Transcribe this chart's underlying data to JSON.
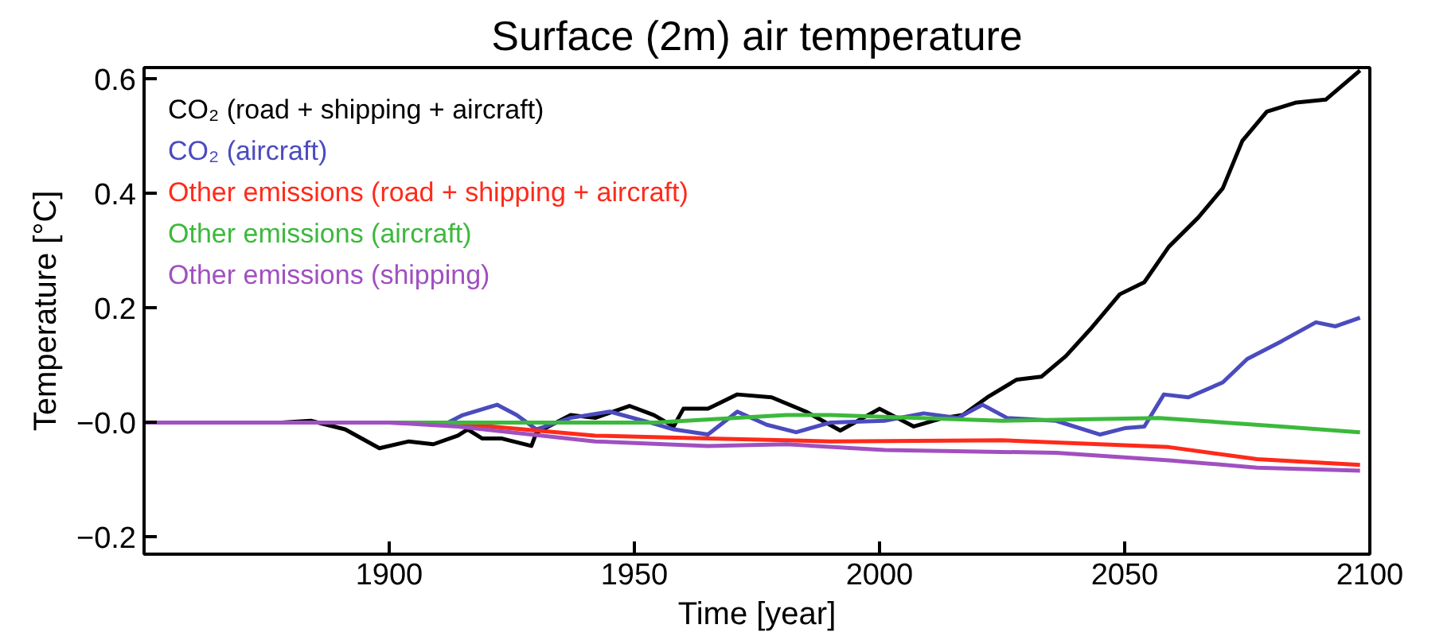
{
  "chart_data": {
    "type": "line",
    "title": "Surface (2m) air temperature",
    "xlabel": "Time [year]",
    "ylabel": "Temperature [°C]",
    "xlim": [
      1850,
      2100
    ],
    "xticks": [
      1900,
      1950,
      2000,
      2050,
      2100
    ],
    "ylim": [
      -0.23,
      0.62
    ],
    "yticks": [
      {
        "value": -0.2,
        "label": "−0.2"
      },
      {
        "value": 0,
        "label": "−0.0"
      },
      0.2,
      0.4,
      0.6
    ],
    "legend": "top left",
    "grid": false,
    "marker": "none",
    "line_style": "solid",
    "series": [
      {
        "name": "CO₂ (road + shipping + aircraft)",
        "color": "#000000",
        "x": [
          1850,
          1878,
          1884,
          1891,
          1898,
          1904,
          1909,
          1914,
          1916,
          1919,
          1923,
          1929,
          1930,
          1937,
          1942,
          1949,
          1954,
          1958,
          1960,
          1965,
          1971,
          1978,
          1985,
          1992,
          2000,
          2007,
          2013,
          2017,
          2022,
          2028,
          2033,
          2038,
          2043,
          2049,
          2054,
          2059,
          2065,
          2070,
          2074,
          2079,
          2085,
          2091,
          2098
        ],
        "values": [
          0,
          0,
          0.003,
          -0.012,
          -0.045,
          -0.033,
          -0.038,
          -0.023,
          -0.012,
          -0.028,
          -0.028,
          -0.041,
          -0.018,
          0.013,
          0.008,
          0.029,
          0.013,
          -0.007,
          0.024,
          0.024,
          0.049,
          0.044,
          0.019,
          -0.014,
          0.024,
          -0.007,
          0.008,
          0.013,
          0.044,
          0.075,
          0.08,
          0.116,
          0.163,
          0.224,
          0.245,
          0.307,
          0.358,
          0.409,
          0.492,
          0.543,
          0.559,
          0.564,
          0.615
        ]
      },
      {
        "name": "CO₂ (aircraft)",
        "color": "#4b4bbf",
        "x": [
          1850,
          1912,
          1915,
          1922,
          1926,
          1930,
          1937,
          1945,
          1954,
          1958,
          1965,
          1971,
          1977,
          1983,
          1990,
          2001,
          2009,
          2016,
          2021,
          2026,
          2036,
          2045,
          2050,
          2054,
          2058,
          2063,
          2070,
          2075,
          2082,
          2089,
          2093,
          2098
        ],
        "values": [
          0,
          0,
          0.013,
          0.031,
          0.013,
          -0.012,
          0.008,
          0.019,
          -0.002,
          -0.012,
          -0.021,
          0.019,
          -0.004,
          -0.017,
          0,
          0.003,
          0.016,
          0.008,
          0.031,
          0.008,
          0.003,
          -0.021,
          -0.01,
          -0.007,
          0.049,
          0.044,
          0.07,
          0.111,
          0.142,
          0.175,
          0.168,
          0.183
        ]
      },
      {
        "name": "Other emissions (road + shipping + aircraft)",
        "color": "#ff2a1a",
        "x": [
          1850,
          1900,
          1914,
          1942,
          1965,
          1981,
          1990,
          2025,
          2059,
          2077,
          2098
        ],
        "values": [
          0,
          0,
          -0.002,
          -0.023,
          -0.028,
          -0.031,
          -0.033,
          -0.031,
          -0.043,
          -0.064,
          -0.074
        ]
      },
      {
        "name": "Other emissions (aircraft)",
        "color": "#3cb93c",
        "x": [
          1850,
          1923,
          1954,
          1981,
          1990,
          2025,
          2057,
          2082,
          2098
        ],
        "values": [
          0,
          0,
          0,
          0.013,
          0.013,
          0.003,
          0.008,
          -0.007,
          -0.017
        ]
      },
      {
        "name": "Other emissions (shipping)",
        "color": "#a050c0",
        "x": [
          1850,
          1900,
          1914,
          1942,
          1965,
          1981,
          2001,
          2036,
          2059,
          2077,
          2098
        ],
        "values": [
          0,
          0,
          -0.007,
          -0.033,
          -0.041,
          -0.038,
          -0.048,
          -0.053,
          -0.066,
          -0.079,
          -0.084
        ]
      }
    ]
  }
}
